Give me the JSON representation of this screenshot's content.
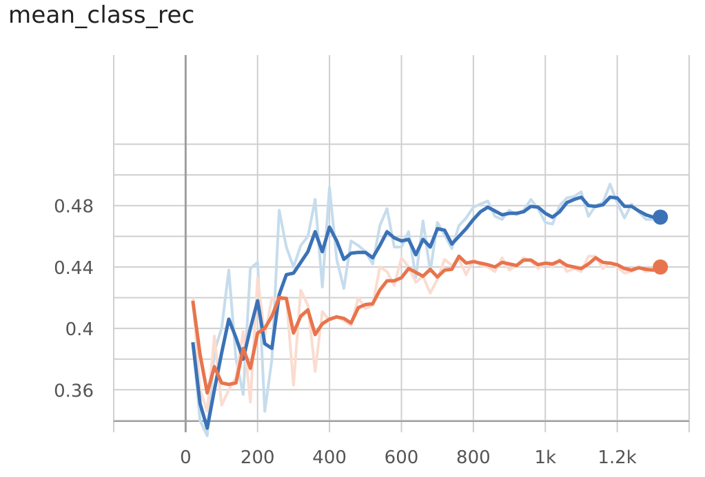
{
  "chart_data": {
    "type": "line",
    "title": "mean_class_rec",
    "xlabel": "",
    "ylabel": "",
    "xlim": [
      -200,
      1400
    ],
    "ylim": [
      0.3395,
      0.5781
    ],
    "x_ticks": [
      {
        "value": 0,
        "label": "0"
      },
      {
        "value": 200,
        "label": "200"
      },
      {
        "value": 400,
        "label": "400"
      },
      {
        "value": 600,
        "label": "600"
      },
      {
        "value": 800,
        "label": "800"
      },
      {
        "value": 1000,
        "label": "1k"
      },
      {
        "value": 1200,
        "label": "1.2k"
      }
    ],
    "y_ticks": [
      {
        "value": 0.36,
        "label": "0.36"
      },
      {
        "value": 0.4,
        "label": "0.4"
      },
      {
        "value": 0.44,
        "label": "0.44"
      },
      {
        "value": 0.48,
        "label": "0.48"
      }
    ],
    "y_minor_ticks": [
      0.34,
      0.38,
      0.42,
      0.46,
      0.5,
      0.52
    ],
    "x_minor_ticks": [
      -200,
      1400
    ],
    "grid": true,
    "legend": "none",
    "series": [
      {
        "color": "#3b72b7",
        "raw_color": "#c6dcec",
        "x": [
          20,
          40,
          60,
          80,
          100,
          120,
          140,
          160,
          180,
          200,
          220,
          240,
          260,
          280,
          300,
          320,
          340,
          360,
          380,
          400,
          420,
          440,
          460,
          480,
          500,
          520,
          540,
          560,
          580,
          600,
          620,
          640,
          660,
          680,
          700,
          720,
          740,
          760,
          780,
          800,
          820,
          840,
          860,
          880,
          900,
          920,
          940,
          960,
          980,
          1000,
          1020,
          1040,
          1060,
          1080,
          1100,
          1120,
          1140,
          1160,
          1180,
          1200,
          1220,
          1240,
          1260,
          1280,
          1300,
          1320
        ],
        "smoothed": [
          0.391,
          0.351,
          0.335,
          0.36,
          0.384,
          0.406,
          0.394,
          0.38,
          0.4,
          0.418,
          0.39,
          0.387,
          0.422,
          0.435,
          0.436,
          0.443,
          0.45,
          0.463,
          0.45,
          0.466,
          0.457,
          0.445,
          0.449,
          0.4495,
          0.4495,
          0.446,
          0.454,
          0.463,
          0.459,
          0.457,
          0.458,
          0.448,
          0.458,
          0.453,
          0.465,
          0.464,
          0.455,
          0.46,
          0.465,
          0.471,
          0.476,
          0.479,
          0.4765,
          0.474,
          0.475,
          0.475,
          0.476,
          0.4795,
          0.479,
          0.475,
          0.4725,
          0.476,
          0.482,
          0.484,
          0.4855,
          0.48,
          0.4795,
          0.4805,
          0.4855,
          0.485,
          0.4795,
          0.4795,
          0.4765,
          0.474,
          0.4725,
          0.4725
        ],
        "raw": [
          0.39,
          0.34,
          0.33,
          0.385,
          0.4,
          0.438,
          0.38,
          0.357,
          0.439,
          0.443,
          0.346,
          0.38,
          0.477,
          0.453,
          0.44,
          0.454,
          0.46,
          0.484,
          0.427,
          0.492,
          0.445,
          0.426,
          0.457,
          0.454,
          0.45,
          0.442,
          0.467,
          0.478,
          0.453,
          0.453,
          0.463,
          0.433,
          0.47,
          0.437,
          0.469,
          0.461,
          0.452,
          0.467,
          0.472,
          0.479,
          0.481,
          0.483,
          0.473,
          0.471,
          0.477,
          0.474,
          0.477,
          0.484,
          0.478,
          0.469,
          0.468,
          0.48,
          0.485,
          0.486,
          0.489,
          0.473,
          0.48,
          0.482,
          0.494,
          0.482,
          0.472,
          0.481,
          0.476,
          0.471,
          0.471,
          0.473
        ],
        "end_marker": true
      },
      {
        "color": "#e8744d",
        "raw_color": "#fbdcd0",
        "x": [
          20,
          40,
          60,
          80,
          100,
          120,
          140,
          160,
          180,
          200,
          220,
          240,
          260,
          280,
          300,
          320,
          340,
          360,
          380,
          400,
          420,
          440,
          460,
          480,
          500,
          520,
          540,
          560,
          580,
          600,
          620,
          640,
          660,
          680,
          700,
          720,
          740,
          760,
          780,
          800,
          820,
          840,
          860,
          880,
          900,
          920,
          940,
          960,
          980,
          1000,
          1020,
          1040,
          1060,
          1080,
          1100,
          1120,
          1140,
          1160,
          1180,
          1200,
          1220,
          1240,
          1260,
          1280,
          1300,
          1320
        ],
        "smoothed": [
          0.418,
          0.383,
          0.358,
          0.375,
          0.3645,
          0.3635,
          0.3645,
          0.387,
          0.374,
          0.397,
          0.4,
          0.408,
          0.42,
          0.4195,
          0.397,
          0.408,
          0.412,
          0.396,
          0.403,
          0.406,
          0.4075,
          0.4065,
          0.4035,
          0.4135,
          0.4155,
          0.416,
          0.425,
          0.431,
          0.431,
          0.433,
          0.439,
          0.4365,
          0.434,
          0.4385,
          0.4335,
          0.438,
          0.4385,
          0.447,
          0.4425,
          0.4435,
          0.4425,
          0.4415,
          0.44,
          0.443,
          0.442,
          0.441,
          0.4445,
          0.4445,
          0.4415,
          0.4425,
          0.442,
          0.444,
          0.441,
          0.44,
          0.439,
          0.442,
          0.446,
          0.443,
          0.4425,
          0.4415,
          0.439,
          0.438,
          0.4395,
          0.4385,
          0.438,
          0.44
        ],
        "raw": [
          0.42,
          0.36,
          0.346,
          0.395,
          0.35,
          0.36,
          0.368,
          0.398,
          0.352,
          0.433,
          0.395,
          0.42,
          0.418,
          0.42,
          0.363,
          0.425,
          0.415,
          0.372,
          0.411,
          0.405,
          0.408,
          0.405,
          0.402,
          0.42,
          0.413,
          0.415,
          0.44,
          0.437,
          0.428,
          0.446,
          0.44,
          0.43,
          0.434,
          0.423,
          0.432,
          0.445,
          0.441,
          0.445,
          0.435,
          0.445,
          0.441,
          0.44,
          0.437,
          0.446,
          0.438,
          0.441,
          0.446,
          0.444,
          0.439,
          0.443,
          0.44,
          0.445,
          0.437,
          0.439,
          0.437,
          0.447,
          0.447,
          0.439,
          0.443,
          0.44,
          0.436,
          0.437,
          0.44,
          0.437,
          0.438,
          0.44
        ],
        "end_marker": true
      }
    ]
  }
}
